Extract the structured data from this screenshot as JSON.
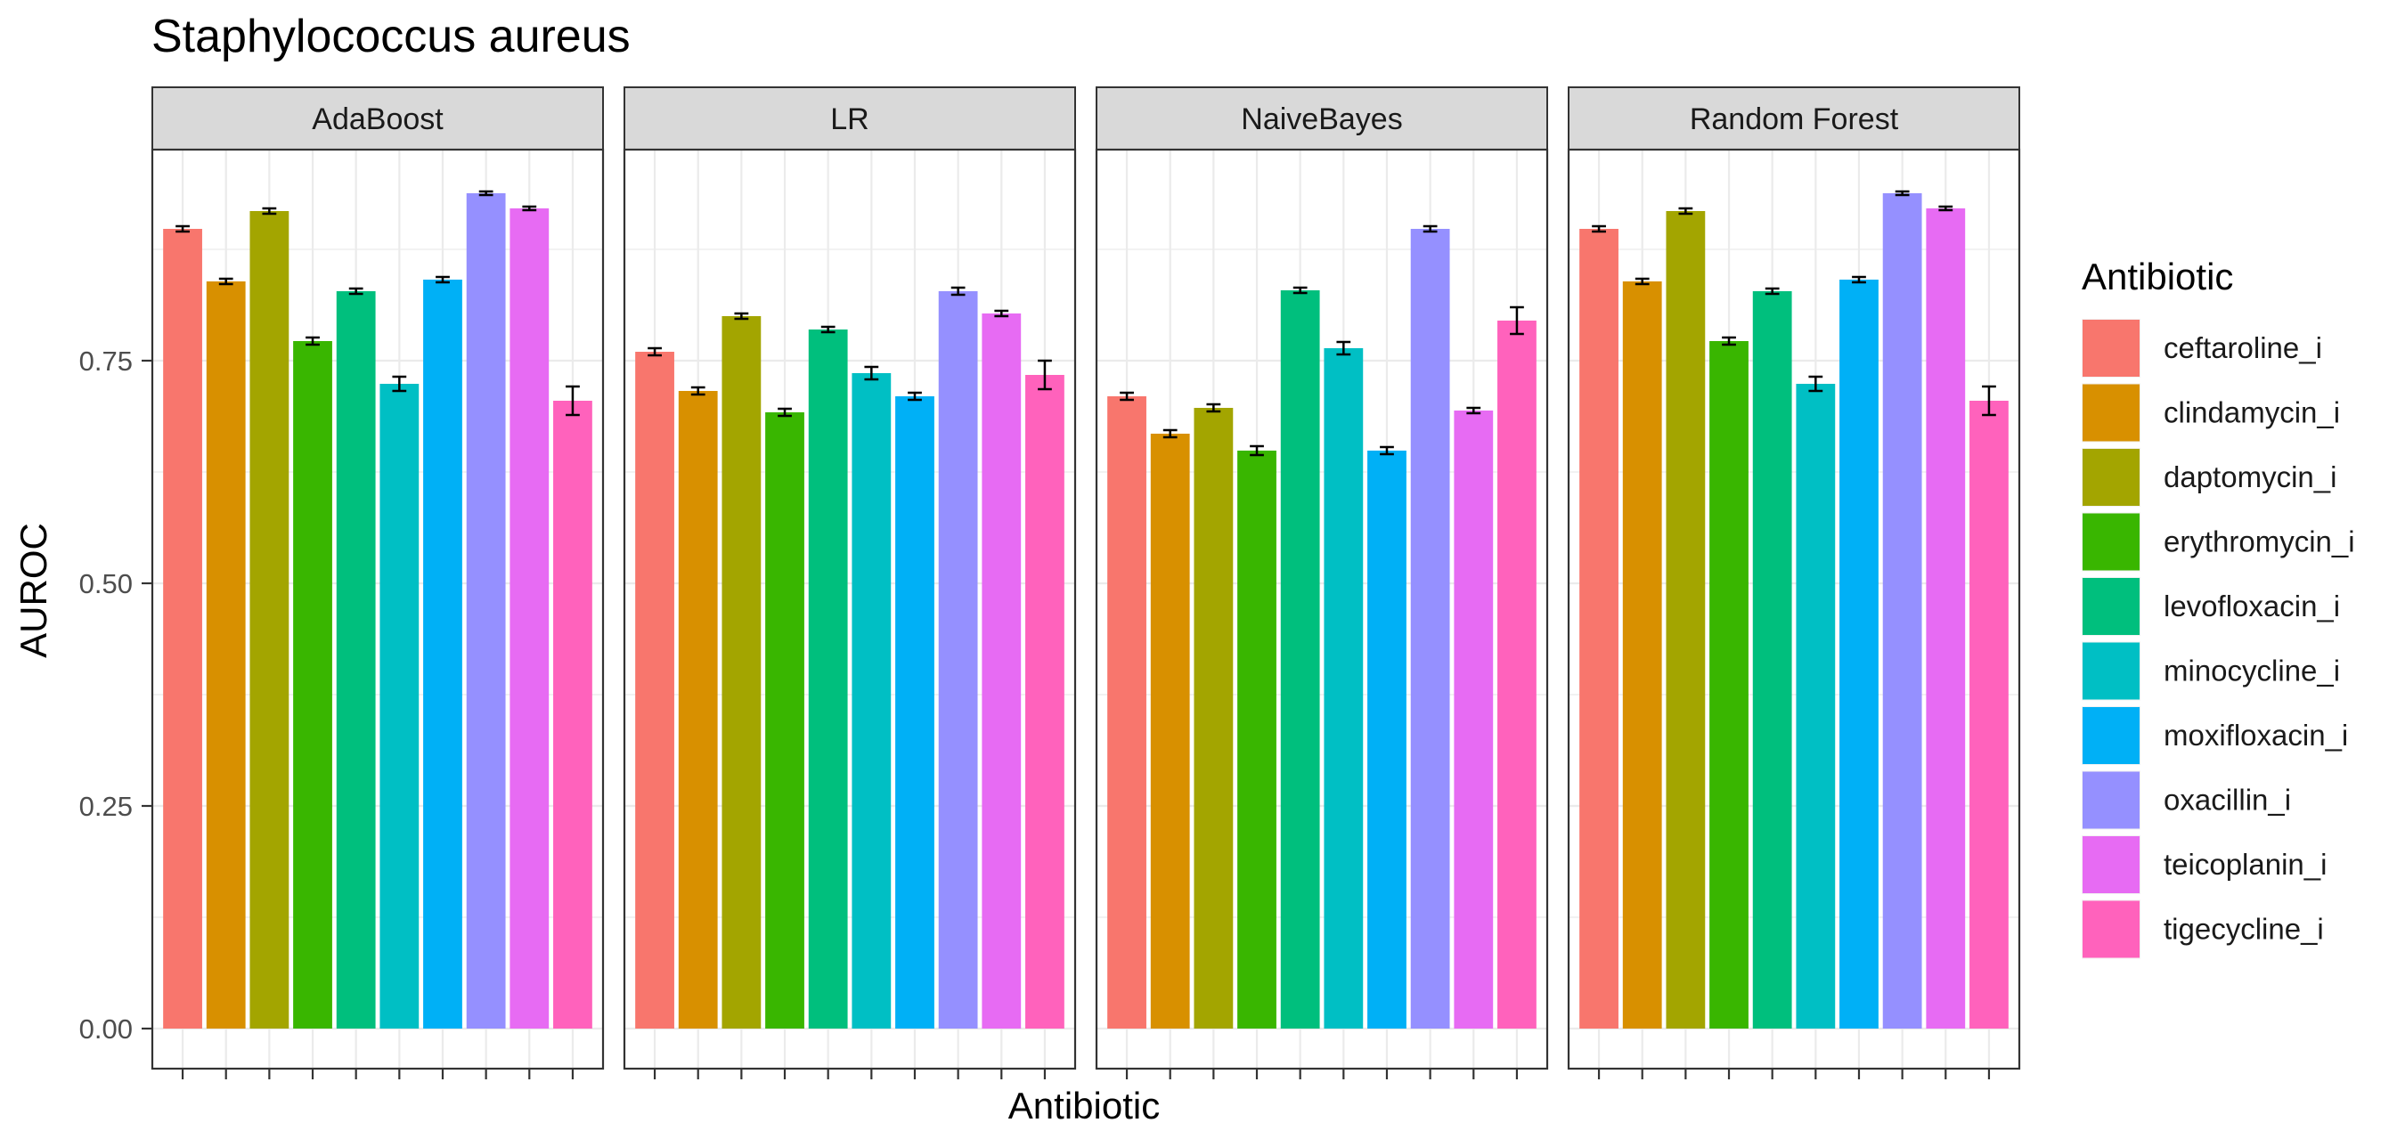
{
  "chart_data": {
    "type": "bar",
    "title": "Staphylococcus aureus",
    "xlabel": "Antibiotic",
    "ylabel": "AUROC",
    "ylim": [
      0,
      0.97
    ],
    "yticks": [
      "0.00",
      "0.25",
      "0.50",
      "0.75"
    ],
    "ytick_values": [
      0,
      0.25,
      0.5,
      0.75
    ],
    "grid": true,
    "legend": {
      "title": "Antibiotic",
      "position": "right"
    },
    "categories": [
      "ceftaroline_i",
      "clindamycin_i",
      "daptomycin_i",
      "erythromycin_i",
      "levofloxacin_i",
      "minocycline_i",
      "moxifloxacin_i",
      "oxacillin_i",
      "teicoplanin_i",
      "tigecycline_i"
    ],
    "colors": [
      "#F8766D",
      "#D89000",
      "#A3A500",
      "#39B600",
      "#00BF7D",
      "#00BFC4",
      "#00B0F6",
      "#9590FF",
      "#E76BF3",
      "#FF62BC"
    ],
    "panels": [
      {
        "name": "AdaBoost",
        "values": [
          0.898,
          0.839,
          0.918,
          0.772,
          0.828,
          0.724,
          0.841,
          0.938,
          0.921,
          0.705
        ],
        "errors": [
          0.003,
          0.003,
          0.003,
          0.004,
          0.003,
          0.008,
          0.003,
          0.002,
          0.002,
          0.016
        ]
      },
      {
        "name": "LR",
        "values": [
          0.76,
          0.716,
          0.8,
          0.692,
          0.785,
          0.736,
          0.71,
          0.828,
          0.803,
          0.734
        ],
        "errors": [
          0.004,
          0.004,
          0.003,
          0.004,
          0.003,
          0.007,
          0.004,
          0.004,
          0.003,
          0.016
        ]
      },
      {
        "name": "NaiveBayes",
        "values": [
          0.71,
          0.668,
          0.697,
          0.649,
          0.829,
          0.764,
          0.649,
          0.898,
          0.694,
          0.795
        ],
        "errors": [
          0.004,
          0.004,
          0.004,
          0.005,
          0.003,
          0.007,
          0.004,
          0.003,
          0.003,
          0.015
        ]
      },
      {
        "name": "Random Forest",
        "values": [
          0.898,
          0.839,
          0.918,
          0.772,
          0.828,
          0.724,
          0.841,
          0.938,
          0.921,
          0.705
        ],
        "errors": [
          0.003,
          0.003,
          0.003,
          0.004,
          0.003,
          0.008,
          0.003,
          0.002,
          0.002,
          0.016
        ]
      }
    ]
  }
}
